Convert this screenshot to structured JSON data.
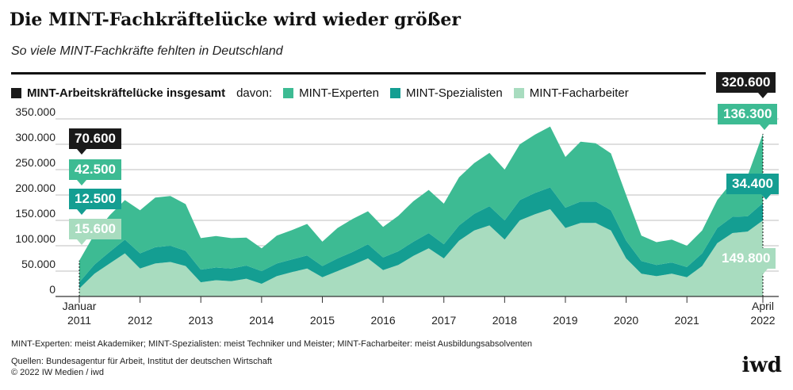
{
  "header": {
    "title": "Die MINT-Fachkräftelücke wird wieder größer",
    "subtitle": "So viele MINT-Fachkräfte fehlten in Deutschland"
  },
  "legend": {
    "total": "MINT-Arbeitskräftelücke insgesamt",
    "prefix": "davon:",
    "experts": "MINT-Experten",
    "specialists": "MINT-Spezialisten",
    "workers": "MINT-Facharbeiter"
  },
  "colors": {
    "experts": "#3dbb93",
    "specialists": "#149e92",
    "workers": "#a8dcbf",
    "total": "#1a1a1a",
    "grid": "#bfbfbf"
  },
  "callouts": {
    "start_total": "70.600",
    "start_experts": "42.500",
    "start_specialists": "12.500",
    "start_workers": "15.600",
    "end_total": "320.600",
    "end_experts": "136.300",
    "end_specialists": "34.400",
    "end_workers": "149.800"
  },
  "footer": {
    "note": "MINT-Experten: meist Akademiker; MINT-Spezialisten: meist Techniker und Meister; MINT-Facharbeiter: meist Ausbildungsabsolventen",
    "sources": "Quellen: Bundesagentur für Arbeit, Institut der deutschen Wirtschaft",
    "copyright": "© 2022 IW Medien / iwd",
    "logo": "iwd"
  },
  "chart_data": {
    "type": "area",
    "stacked": true,
    "title": "Die MINT-Fachkräftelücke wird wieder größer",
    "subtitle": "So viele MINT-Fachkräfte fehlten in Deutschland",
    "ylim": [
      0,
      350000
    ],
    "yticks": [
      0,
      50000,
      100000,
      150000,
      200000,
      250000,
      300000,
      350000
    ],
    "ytick_labels": [
      "0",
      "50.000",
      "100.000",
      "150.000",
      "200.000",
      "250.000",
      "300.000",
      "350.000"
    ],
    "xtick_labels": [
      {
        "x": "2011-01",
        "label": "Januar",
        "label2": "2011"
      },
      {
        "x": "2012-01",
        "label": "2012"
      },
      {
        "x": "2013-01",
        "label": "2013"
      },
      {
        "x": "2014-01",
        "label": "2014"
      },
      {
        "x": "2015-01",
        "label": "2015"
      },
      {
        "x": "2016-01",
        "label": "2016"
      },
      {
        "x": "2017-01",
        "label": "2017"
      },
      {
        "x": "2018-01",
        "label": "2018"
      },
      {
        "x": "2019-01",
        "label": "2019"
      },
      {
        "x": "2020-01",
        "label": "2020"
      },
      {
        "x": "2021-01",
        "label": "2021"
      },
      {
        "x": "2022-04",
        "label": "April",
        "label2": "2022"
      }
    ],
    "grid": true,
    "legend_position": "top",
    "x": [
      "2011-01",
      "2011-04",
      "2011-07",
      "2011-10",
      "2012-01",
      "2012-04",
      "2012-07",
      "2012-10",
      "2013-01",
      "2013-04",
      "2013-07",
      "2013-10",
      "2014-01",
      "2014-04",
      "2014-07",
      "2014-10",
      "2015-01",
      "2015-04",
      "2015-07",
      "2015-10",
      "2016-01",
      "2016-04",
      "2016-07",
      "2016-10",
      "2017-01",
      "2017-04",
      "2017-07",
      "2017-10",
      "2018-01",
      "2018-04",
      "2018-07",
      "2018-10",
      "2019-01",
      "2019-04",
      "2019-07",
      "2019-10",
      "2020-01",
      "2020-04",
      "2020-07",
      "2020-10",
      "2021-01",
      "2021-04",
      "2021-07",
      "2021-10",
      "2022-01",
      "2022-04"
    ],
    "series": [
      {
        "name": "MINT-Facharbeiter",
        "values": [
          15600,
          45000,
          65000,
          85000,
          55000,
          65000,
          68000,
          60000,
          28000,
          32000,
          30000,
          35000,
          25000,
          40000,
          48000,
          55000,
          38000,
          50000,
          62000,
          75000,
          52000,
          62000,
          80000,
          95000,
          75000,
          110000,
          130000,
          140000,
          112000,
          150000,
          162000,
          172000,
          135000,
          145000,
          145000,
          130000,
          75000,
          45000,
          40000,
          45000,
          38000,
          60000,
          105000,
          125000,
          128000,
          149800
        ]
      },
      {
        "name": "MINT-Spezialisten",
        "values": [
          12500,
          18000,
          23000,
          27000,
          30000,
          32000,
          32000,
          30000,
          25000,
          25000,
          25000,
          26000,
          25000,
          25000,
          25000,
          26000,
          22000,
          25000,
          26000,
          28000,
          25000,
          27000,
          28000,
          30000,
          28000,
          30000,
          33000,
          38000,
          38000,
          40000,
          42000,
          43000,
          40000,
          42000,
          42000,
          40000,
          35000,
          25000,
          22000,
          22000,
          20000,
          25000,
          30000,
          32000,
          30000,
          34400
        ]
      },
      {
        "name": "MINT-Experten",
        "values": [
          42500,
          60000,
          72000,
          78000,
          85000,
          98000,
          98000,
          92000,
          62000,
          62000,
          60000,
          55000,
          45000,
          55000,
          58000,
          62000,
          48000,
          60000,
          65000,
          65000,
          60000,
          70000,
          80000,
          85000,
          80000,
          95000,
          100000,
          105000,
          100000,
          110000,
          115000,
          120000,
          100000,
          118000,
          115000,
          112000,
          90000,
          50000,
          45000,
          45000,
          42000,
          45000,
          55000,
          70000,
          80000,
          136300
        ]
      }
    ],
    "totals_labeled": {
      "2011-01": 70600,
      "2022-04": 320600
    }
  }
}
